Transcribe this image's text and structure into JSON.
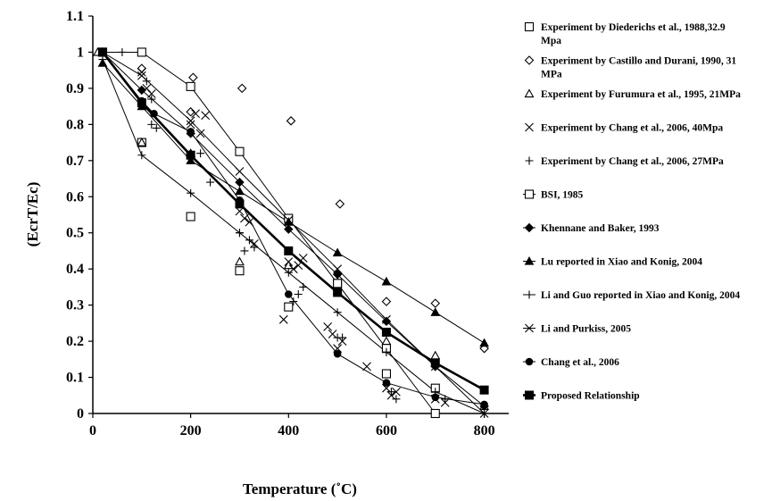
{
  "chart_data": {
    "type": "scatter",
    "xlabel": "Temperature (˚C)",
    "ylabel": "(EcrT/Ec)",
    "xlim": [
      0,
      850
    ],
    "ylim": [
      0,
      1.1
    ],
    "x_ticks": [
      "0",
      "200",
      "400",
      "600",
      "800"
    ],
    "y_ticks": [
      "0",
      "0.1",
      "0.2",
      "0.3",
      "0.4",
      "0.5",
      "0.6",
      "0.7",
      "0.8",
      "0.9",
      "1",
      "1.1"
    ],
    "grid": false,
    "legend_position": "right",
    "series": [
      {
        "name": "Experiment by Diederichs et al., 1988,32.9 Mpa",
        "marker": "square-open",
        "line": false,
        "points": [
          [
            20,
            1.0
          ],
          [
            100,
            0.75
          ],
          [
            200,
            0.545
          ],
          [
            300,
            0.395
          ],
          [
            400,
            0.295
          ],
          [
            500,
            0.36
          ],
          [
            600,
            0.11
          ],
          [
            700,
            0.07
          ]
        ]
      },
      {
        "name": "Experiment by Castillo and Durani, 1990, 31 MPa",
        "marker": "diamond-open",
        "line": false,
        "points": [
          [
            20,
            1.0
          ],
          [
            100,
            0.955
          ],
          [
            200,
            0.835
          ],
          [
            205,
            0.93
          ],
          [
            305,
            0.9
          ],
          [
            405,
            0.81
          ],
          [
            505,
            0.58
          ],
          [
            600,
            0.31
          ],
          [
            700,
            0.305
          ],
          [
            800,
            0.18
          ]
        ]
      },
      {
        "name": "Experiment by Furumura et al., 1995, 21MPa",
        "marker": "triangle-open",
        "line": false,
        "points": [
          [
            10,
            1.0
          ],
          [
            100,
            0.75
          ],
          [
            200,
            0.72
          ],
          [
            300,
            0.42
          ],
          [
            400,
            0.41
          ],
          [
            500,
            0.34
          ],
          [
            600,
            0.2
          ],
          [
            700,
            0.16
          ],
          [
            800,
            0.02
          ]
        ]
      },
      {
        "name": "Experiment by Chang et al., 2006, 40Mpa",
        "marker": "x",
        "line": false,
        "points": [
          [
            20,
            1.0
          ],
          [
            100,
            0.945
          ],
          [
            110,
            0.9
          ],
          [
            120,
            0.885
          ],
          [
            200,
            0.8
          ],
          [
            210,
            0.83
          ],
          [
            220,
            0.775
          ],
          [
            230,
            0.825
          ],
          [
            300,
            0.56
          ],
          [
            310,
            0.54
          ],
          [
            320,
            0.53
          ],
          [
            330,
            0.47
          ],
          [
            400,
            0.42
          ],
          [
            410,
            0.4
          ],
          [
            420,
            0.41
          ],
          [
            430,
            0.43
          ],
          [
            390,
            0.26
          ],
          [
            480,
            0.24
          ],
          [
            490,
            0.22
          ],
          [
            500,
            0.18
          ],
          [
            510,
            0.2
          ],
          [
            560,
            0.13
          ],
          [
            600,
            0.07
          ],
          [
            610,
            0.05
          ],
          [
            620,
            0.06
          ],
          [
            700,
            0.04
          ],
          [
            720,
            0.03
          ]
        ]
      },
      {
        "name": "Experiment by Chang et al., 2006, 27MPa",
        "marker": "plus",
        "line": false,
        "points": [
          [
            20,
            1.0
          ],
          [
            60,
            1.0
          ],
          [
            110,
            0.92
          ],
          [
            120,
            0.87
          ],
          [
            120,
            0.8
          ],
          [
            130,
            0.79
          ],
          [
            200,
            0.72
          ],
          [
            220,
            0.72
          ],
          [
            240,
            0.64
          ],
          [
            300,
            0.5
          ],
          [
            310,
            0.45
          ],
          [
            320,
            0.48
          ],
          [
            330,
            0.46
          ],
          [
            410,
            0.31
          ],
          [
            420,
            0.33
          ],
          [
            430,
            0.35
          ],
          [
            500,
            0.21
          ],
          [
            510,
            0.21
          ],
          [
            600,
            0.17
          ],
          [
            610,
            0.06
          ],
          [
            620,
            0.04
          ],
          [
            700,
            0.05
          ],
          [
            720,
            0.04
          ]
        ]
      },
      {
        "name": "BSI, 1985",
        "marker": "square-open",
        "line": true,
        "points": [
          [
            20,
            1.0
          ],
          [
            100,
            1.0
          ],
          [
            200,
            0.905
          ],
          [
            300,
            0.725
          ],
          [
            400,
            0.54
          ],
          [
            500,
            0.36
          ],
          [
            600,
            0.18
          ],
          [
            700,
            0.0
          ]
        ]
      },
      {
        "name": "Khennane and Baker, 1993",
        "marker": "diamond-filled",
        "line": true,
        "points": [
          [
            20,
            1.0
          ],
          [
            100,
            0.895
          ],
          [
            200,
            0.775
          ],
          [
            300,
            0.64
          ],
          [
            400,
            0.51
          ],
          [
            500,
            0.385
          ],
          [
            600,
            0.255
          ],
          [
            700,
            0.13
          ],
          [
            800,
            0.02
          ]
        ]
      },
      {
        "name": "Lu reported in Xiao and Konig, 2004",
        "marker": "triangle-filled",
        "line": true,
        "points": [
          [
            20,
            0.97
          ],
          [
            100,
            0.85
          ],
          [
            200,
            0.7
          ],
          [
            300,
            0.615
          ],
          [
            400,
            0.53
          ],
          [
            500,
            0.445
          ],
          [
            600,
            0.365
          ],
          [
            700,
            0.28
          ],
          [
            800,
            0.195
          ]
        ]
      },
      {
        "name": "Li and Guo reported in Xiao and Konig, 2004",
        "marker": "plus",
        "line": true,
        "points": [
          [
            20,
            0.98
          ],
          [
            100,
            0.715
          ],
          [
            200,
            0.61
          ],
          [
            300,
            0.5
          ],
          [
            400,
            0.39
          ],
          [
            500,
            0.28
          ],
          [
            600,
            0.17
          ],
          [
            700,
            0.06
          ],
          [
            800,
            0.0
          ]
        ]
      },
      {
        "name": "Li and Purkiss, 2005",
        "marker": "x",
        "line": true,
        "points": [
          [
            20,
            1.0
          ],
          [
            100,
            0.935
          ],
          [
            200,
            0.81
          ],
          [
            300,
            0.67
          ],
          [
            400,
            0.535
          ],
          [
            500,
            0.4
          ],
          [
            600,
            0.26
          ],
          [
            700,
            0.13
          ],
          [
            800,
            0.0
          ]
        ]
      },
      {
        "name": "Chang et al., 2006",
        "marker": "circle-filled",
        "line": true,
        "points": [
          [
            20,
            1.0
          ],
          [
            100,
            0.865
          ],
          [
            125,
            0.83
          ],
          [
            200,
            0.78
          ],
          [
            300,
            0.59
          ],
          [
            400,
            0.33
          ],
          [
            500,
            0.165
          ],
          [
            600,
            0.085
          ],
          [
            700,
            0.045
          ],
          [
            800,
            0.025
          ]
        ]
      },
      {
        "name": "Proposed Relationship",
        "marker": "square-filled",
        "line": true,
        "thick": true,
        "points": [
          [
            20,
            1.0
          ],
          [
            100,
            0.86
          ],
          [
            200,
            0.715
          ],
          [
            300,
            0.58
          ],
          [
            400,
            0.45
          ],
          [
            500,
            0.335
          ],
          [
            600,
            0.225
          ],
          [
            700,
            0.14
          ],
          [
            800,
            0.065
          ]
        ]
      }
    ]
  }
}
